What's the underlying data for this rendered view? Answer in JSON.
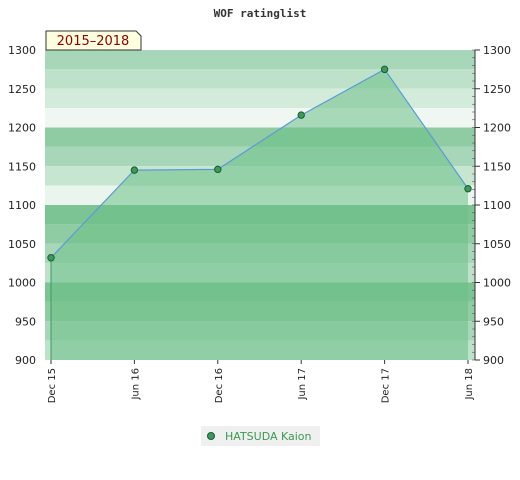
{
  "chart_data": {
    "type": "area",
    "title": "WOF ratinglist",
    "period_label": "2015–2018",
    "x": [
      "Dec 15",
      "Jun 16",
      "Dec 16",
      "Jun 17",
      "Dec 17",
      "Jun 18"
    ],
    "series": [
      {
        "name": "HATSUDA Kaion",
        "values": [
          1032,
          1145,
          1146,
          1216,
          1275,
          1121
        ]
      }
    ],
    "ylim": [
      900,
      1300
    ],
    "yticks": [
      "900",
      "950",
      "1000",
      "1050",
      "1100",
      "1150",
      "1200",
      "1250",
      "1300"
    ],
    "y_axis_sides": "both",
    "legend_position": "bottom-center",
    "colors": {
      "line": "#5b9bd5",
      "fill": "#6cbf86",
      "marker": "#3d9a5e",
      "legend_text": "#3a9a50",
      "period_text": "#8b0000",
      "period_bg": "#ffffe0"
    }
  }
}
